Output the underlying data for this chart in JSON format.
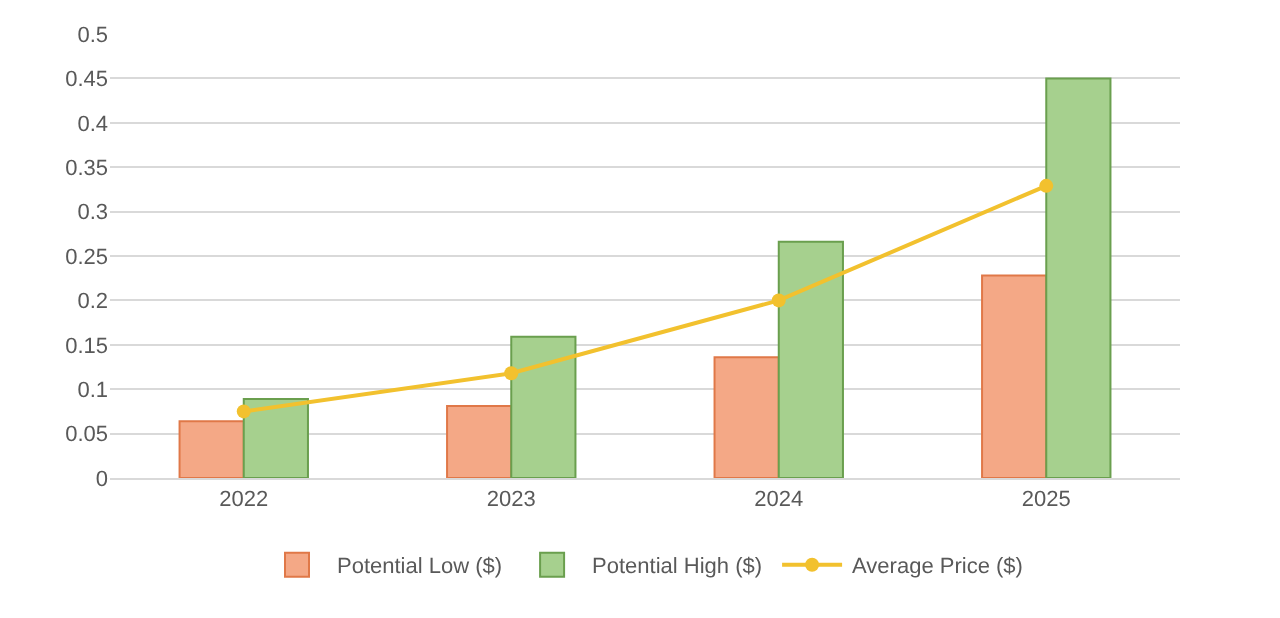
{
  "chart_data": {
    "type": "bar",
    "categories": [
      "2022",
      "2023",
      "2024",
      "2025"
    ],
    "series": [
      {
        "name": "Potential Low ($)",
        "color": "#f4a886",
        "values": [
          0.064,
          0.081,
          0.136,
          0.228
        ]
      },
      {
        "name": "Potential High ($)",
        "color": "#a6d08e",
        "values": [
          0.089,
          0.159,
          0.266,
          0.45
        ]
      },
      {
        "name": "Average Price ($)",
        "type": "line",
        "color": "#f2c12e",
        "marker": "circle",
        "values": [
          0.075,
          0.118,
          0.2,
          0.329
        ]
      }
    ],
    "ylim": [
      0,
      0.5
    ],
    "yticks": [
      0,
      0.05,
      0.1,
      0.15,
      0.2,
      0.25,
      0.3,
      0.35,
      0.4,
      0.45,
      0.5
    ],
    "grid": "y",
    "legend": "bottom"
  }
}
